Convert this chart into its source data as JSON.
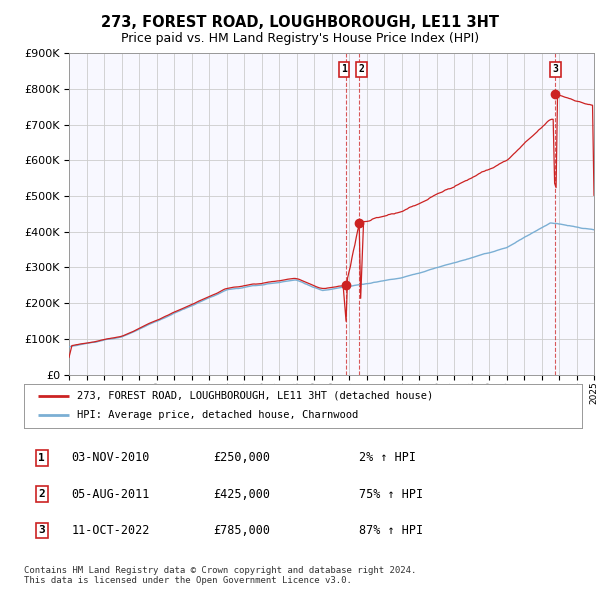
{
  "title": "273, FOREST ROAD, LOUGHBOROUGH, LE11 3HT",
  "subtitle": "Price paid vs. HM Land Registry's House Price Index (HPI)",
  "ylim": [
    0,
    900000
  ],
  "ytick_labels": [
    "£0",
    "£100K",
    "£200K",
    "£300K",
    "£400K",
    "£500K",
    "£600K",
    "£700K",
    "£800K",
    "£900K"
  ],
  "x_start_year": 1995,
  "x_end_year": 2025,
  "hpi_color": "#7bafd4",
  "price_color": "#cc2222",
  "background_color": "#ffffff",
  "plot_bg_color": "#f8f8ff",
  "grid_color": "#cccccc",
  "sale1_date": "03-NOV-2010",
  "sale1_price": 250000,
  "sale1_pct": "2%",
  "sale2_date": "05-AUG-2011",
  "sale2_price": 425000,
  "sale2_pct": "75%",
  "sale3_date": "11-OCT-2022",
  "sale3_price": 785000,
  "sale3_pct": "87%",
  "sale1_x": 2010.84,
  "sale2_x": 2011.59,
  "sale3_x": 2022.78,
  "legend_label1": "273, FOREST ROAD, LOUGHBOROUGH, LE11 3HT (detached house)",
  "legend_label2": "HPI: Average price, detached house, Charnwood",
  "footer": "Contains HM Land Registry data © Crown copyright and database right 2024.\nThis data is licensed under the Open Government Licence v3.0.",
  "title_fontsize": 10.5,
  "subtitle_fontsize": 9
}
